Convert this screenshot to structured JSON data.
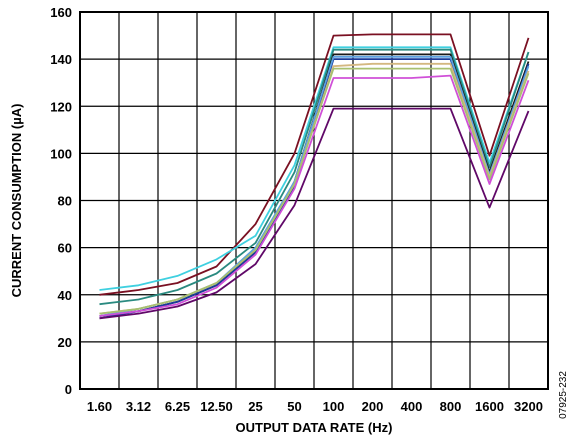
{
  "chart_data": {
    "type": "line",
    "title": "",
    "xlabel": "OUTPUT DATA RATE (Hz)",
    "ylabel": "CURRENT CONSUMPTION (µA)",
    "categories": [
      "1.60",
      "3.12",
      "6.25",
      "12.50",
      "25",
      "50",
      "100",
      "200",
      "400",
      "800",
      "1600",
      "3200"
    ],
    "ylim": [
      0,
      160
    ],
    "yticks": [
      "0",
      "20",
      "40",
      "60",
      "80",
      "100",
      "120",
      "140",
      "160"
    ],
    "grid": true,
    "legend": "none",
    "series": [
      {
        "color": "#7a1022",
        "values": [
          40,
          42,
          45,
          52,
          70,
          100,
          150,
          150.5,
          150.5,
          150.5,
          99,
          149
        ]
      },
      {
        "color": "#3fd0e0",
        "values": [
          42,
          44,
          48,
          55,
          65,
          95,
          145,
          145,
          145,
          145,
          96,
          143
        ]
      },
      {
        "color": "#2a8a80",
        "values": [
          36,
          38,
          42,
          49,
          62,
          92,
          144,
          144,
          144,
          144,
          94,
          143
        ]
      },
      {
        "color": "#1a1a1a",
        "values": [
          31,
          33,
          37,
          44,
          58,
          88,
          142,
          142,
          142,
          142,
          92,
          139
        ]
      },
      {
        "color": "#1a3a9a",
        "values": [
          30,
          33,
          37,
          44,
          58,
          86,
          140,
          140,
          140,
          140,
          89,
          138
        ]
      },
      {
        "color": "#5aa0e0",
        "values": [
          31,
          34,
          38,
          45,
          60,
          88,
          141,
          141,
          141,
          141,
          91,
          137
        ]
      },
      {
        "color": "#d4b880",
        "values": [
          32,
          34,
          38,
          45,
          59,
          87,
          137,
          138,
          138,
          138,
          90,
          135
        ]
      },
      {
        "color": "#a8c070",
        "values": [
          32,
          34,
          38,
          45,
          59,
          87,
          136,
          136,
          136,
          136,
          89,
          134
        ]
      },
      {
        "color": "#d050d8",
        "values": [
          31,
          33,
          36,
          43,
          57,
          85,
          132,
          132,
          132,
          133,
          87,
          131
        ]
      },
      {
        "color": "#600868",
        "values": [
          30,
          32,
          35,
          41,
          53,
          78,
          119,
          119,
          119,
          119,
          77,
          118
        ]
      }
    ]
  },
  "figure_code": "07925-232"
}
